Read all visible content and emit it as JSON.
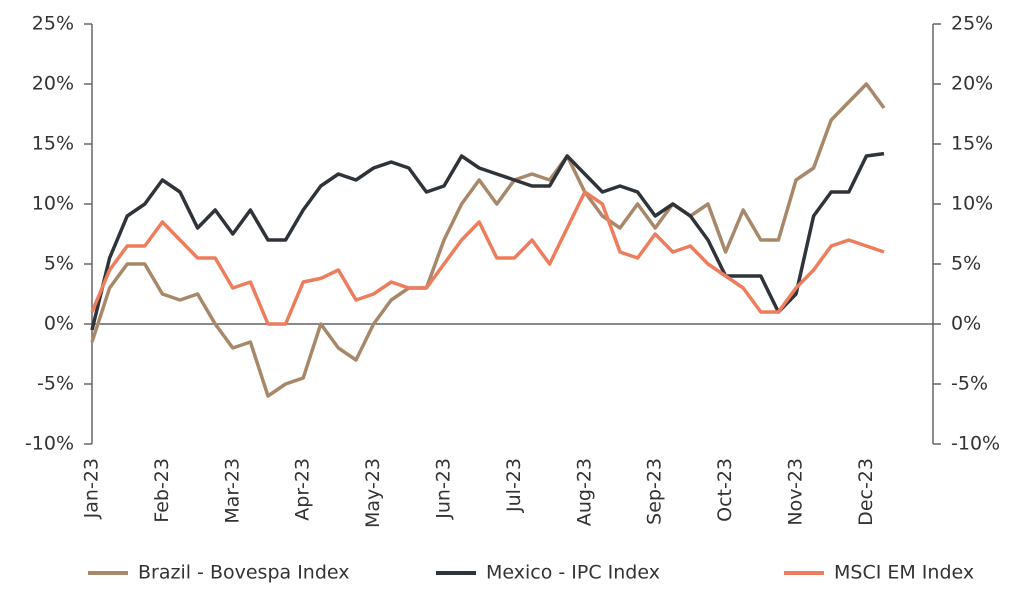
{
  "chart_data": {
    "type": "line",
    "categories": [
      "Jan-23",
      null,
      null,
      null,
      "Feb-23",
      null,
      null,
      null,
      "Mar-23",
      null,
      null,
      null,
      "Apr-23",
      null,
      null,
      null,
      "May-23",
      null,
      null,
      null,
      "Jun-23",
      null,
      null,
      null,
      "Jul-23",
      null,
      null,
      null,
      "Aug-23",
      null,
      null,
      null,
      "Sep-23",
      null,
      null,
      null,
      "Oct-23",
      null,
      null,
      null,
      "Nov-23",
      null,
      null,
      null,
      "Dec-23",
      null
    ],
    "series": [
      {
        "name": "Brazil - Bovespa Index",
        "color": "#a8886a",
        "values": [
          -1.5,
          3,
          5,
          5,
          2.5,
          2,
          2.5,
          0,
          -2,
          -1.5,
          -6,
          -5,
          -4.5,
          0,
          -2,
          -3,
          0,
          2,
          3,
          3,
          7,
          10,
          12,
          10,
          12,
          12.5,
          12,
          14,
          11,
          9,
          8,
          10,
          8,
          10,
          9,
          10,
          6,
          9.5,
          7,
          7,
          12,
          13,
          17,
          18.5,
          20,
          18
        ]
      },
      {
        "name": "Mexico - IPC Index",
        "color": "#2e3439",
        "values": [
          -0.5,
          5.5,
          9,
          10,
          12,
          11,
          8,
          9.5,
          7.5,
          9.5,
          7,
          7,
          9.5,
          11.5,
          12.5,
          12,
          13,
          13.5,
          13,
          11,
          11.5,
          14,
          13,
          12.5,
          12,
          11.5,
          11.5,
          14,
          12.5,
          11,
          11.5,
          11,
          9,
          10,
          9,
          7,
          4,
          4,
          4,
          1,
          2.5,
          9,
          11,
          11,
          14,
          14.2
        ]
      },
      {
        "name": "MSCI EM Index",
        "color": "#ee7d5e",
        "values": [
          1,
          4.5,
          6.5,
          6.5,
          8.5,
          7,
          5.5,
          5.5,
          3,
          3.5,
          0,
          0,
          3.5,
          3.8,
          4.5,
          2,
          2.5,
          3.5,
          3,
          3,
          5,
          7,
          8.5,
          5.5,
          5.5,
          7,
          5,
          8,
          11,
          10,
          6,
          5.5,
          7.5,
          6,
          6.5,
          5,
          4,
          3,
          1,
          1,
          3,
          4.5,
          6.5,
          7,
          6.5,
          6
        ]
      }
    ],
    "ylim": [
      -10,
      25
    ],
    "yticks": [
      {
        "value": -10,
        "label": "-10%"
      },
      {
        "value": -5,
        "label": "-5%"
      },
      {
        "value": 0,
        "label": "0%"
      },
      {
        "value": 5,
        "label": "5%"
      },
      {
        "value": 10,
        "label": "10%"
      },
      {
        "value": 15,
        "label": "15%"
      },
      {
        "value": 20,
        "label": "20%"
      },
      {
        "value": 25,
        "label": "25%"
      }
    ],
    "legend": "bottom"
  }
}
